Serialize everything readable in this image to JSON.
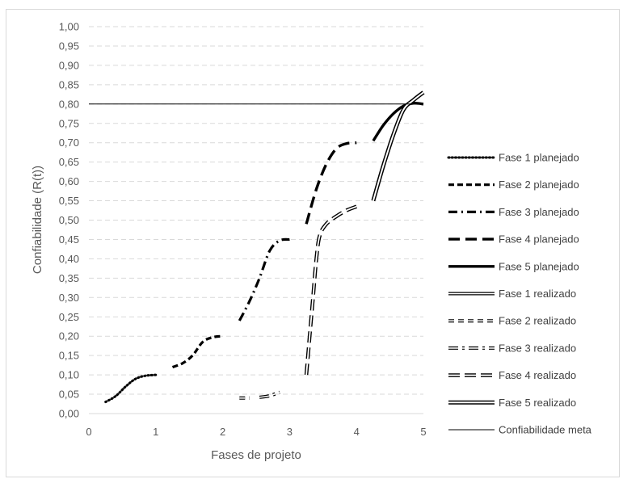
{
  "chart_data": {
    "type": "line",
    "title": "",
    "xlabel": "Fases de projeto",
    "ylabel": "Confiabilidade (R(t))",
    "xlim": [
      0,
      5
    ],
    "ylim": [
      0,
      1
    ],
    "x_ticks": [
      "0",
      "1",
      "2",
      "3",
      "4",
      "5"
    ],
    "y_ticks": [
      "0,00",
      "0,05",
      "0,10",
      "0,15",
      "0,20",
      "0,25",
      "0,30",
      "0,35",
      "0,40",
      "0,45",
      "0,50",
      "0,55",
      "0,60",
      "0,65",
      "0,70",
      "0,75",
      "0,80",
      "0,85",
      "0,90",
      "0,95",
      "1,00"
    ],
    "grid": "horizontal dashed",
    "legend_position": "right",
    "series": [
      {
        "name": "Fase 1 planejado",
        "style": "dotted",
        "points": [
          [
            0.25,
            0.03
          ],
          [
            0.4,
            0.045
          ],
          [
            0.55,
            0.07
          ],
          [
            0.7,
            0.09
          ],
          [
            0.85,
            0.098
          ],
          [
            1.0,
            0.1
          ]
        ]
      },
      {
        "name": "Fase 2 planejado",
        "style": "dashed",
        "points": [
          [
            1.25,
            0.12
          ],
          [
            1.4,
            0.13
          ],
          [
            1.55,
            0.15
          ],
          [
            1.7,
            0.185
          ],
          [
            1.85,
            0.197
          ],
          [
            2.0,
            0.2
          ]
        ]
      },
      {
        "name": "Fase 3 planejado",
        "style": "dash-dot",
        "points": [
          [
            2.25,
            0.24
          ],
          [
            2.4,
            0.29
          ],
          [
            2.55,
            0.35
          ],
          [
            2.7,
            0.42
          ],
          [
            2.85,
            0.447
          ],
          [
            3.0,
            0.45
          ]
        ]
      },
      {
        "name": "Fase 4 planejado",
        "style": "long-dash",
        "points": [
          [
            3.25,
            0.49
          ],
          [
            3.4,
            0.58
          ],
          [
            3.55,
            0.645
          ],
          [
            3.7,
            0.685
          ],
          [
            3.85,
            0.698
          ],
          [
            4.0,
            0.7
          ]
        ]
      },
      {
        "name": "Fase 5 planejado",
        "style": "solid-thick",
        "points": [
          [
            4.25,
            0.705
          ],
          [
            4.4,
            0.745
          ],
          [
            4.55,
            0.775
          ],
          [
            4.7,
            0.795
          ],
          [
            4.85,
            0.802
          ],
          [
            5.0,
            0.8
          ]
        ]
      },
      {
        "name": "Fase 1 realizado",
        "style": "double-solid",
        "points": []
      },
      {
        "name": "Fase 2 realizado",
        "style": "double-dashed",
        "points": [
          [
            2.25,
            0.04
          ],
          [
            2.4,
            0.04
          ]
        ]
      },
      {
        "name": "Fase 3 realizado",
        "style": "double-dash-dot",
        "points": [
          [
            2.55,
            0.042
          ],
          [
            2.7,
            0.046
          ],
          [
            2.85,
            0.055
          ]
        ]
      },
      {
        "name": "Fase 4 realizado",
        "style": "double-long-dash",
        "points": [
          [
            3.25,
            0.1
          ],
          [
            3.3,
            0.2
          ],
          [
            3.35,
            0.3
          ],
          [
            3.4,
            0.4
          ],
          [
            3.45,
            0.46
          ],
          [
            3.55,
            0.49
          ],
          [
            3.7,
            0.51
          ],
          [
            3.85,
            0.525
          ],
          [
            4.0,
            0.535
          ]
        ]
      },
      {
        "name": "Fase 5 realizado",
        "style": "double-solid-thick",
        "points": [
          [
            4.25,
            0.55
          ],
          [
            4.4,
            0.64
          ],
          [
            4.55,
            0.72
          ],
          [
            4.7,
            0.785
          ],
          [
            4.85,
            0.81
          ],
          [
            5.0,
            0.83
          ]
        ]
      },
      {
        "name": "Confiabilidade meta",
        "style": "thin",
        "points": [
          [
            0,
            0.8
          ],
          [
            5,
            0.8
          ]
        ]
      }
    ]
  }
}
